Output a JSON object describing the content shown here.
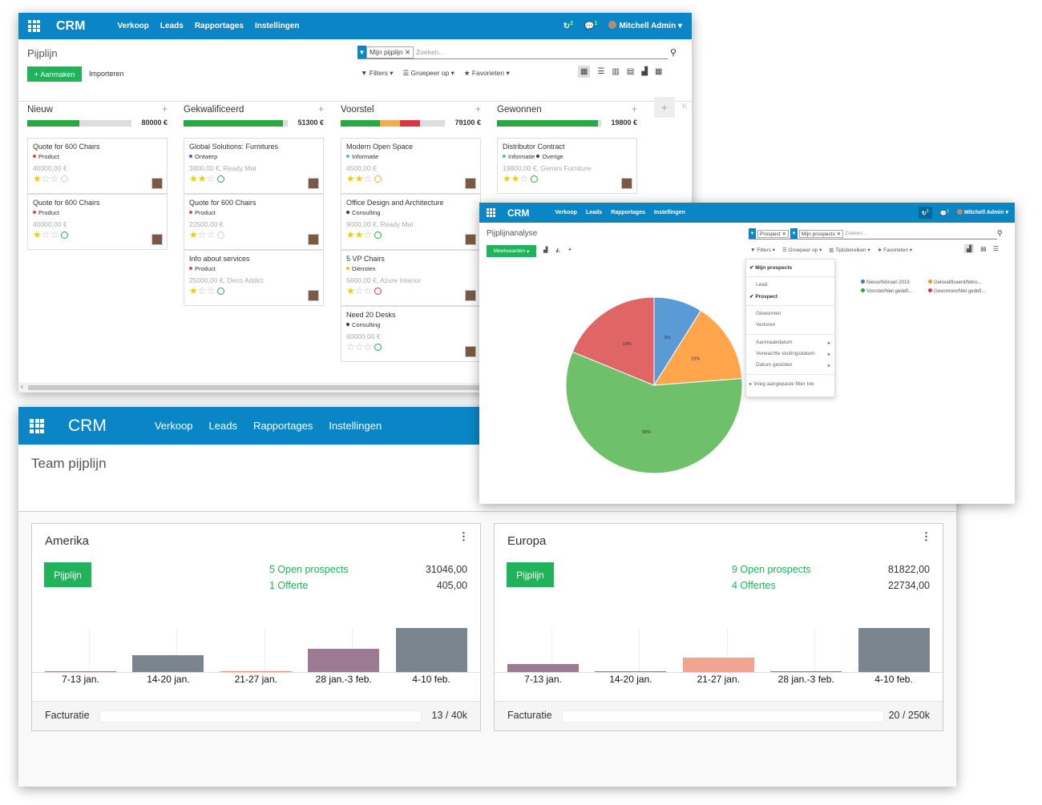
{
  "kanban": {
    "nav": {
      "brand": "CRM",
      "menu": [
        "Verkoop",
        "Leads",
        "Rapportages",
        "Instellingen"
      ],
      "badge1": "2",
      "badge2": "1",
      "user": "Mitchell Admin"
    },
    "breadcrumb": "Pijplijn",
    "facet": "Mijn pijplijn",
    "search_placeholder": "Zoeken...",
    "create_label": "Aanmaken",
    "import_label": "Importeren",
    "filters": "Filters",
    "groupby": "Groepeer op",
    "favorites": "Favorieten",
    "columns": [
      {
        "name": "Nieuw",
        "total": "80000",
        "pct": [
          {
            "c": "#28a745",
            "v": 0.5
          }
        ],
        "cards": [
          {
            "title": "Quote for 600 Chairs",
            "tags": [
              {
                "t": "Product",
                "c": "#e74c3c"
              }
            ],
            "amount": "40000,00 €",
            "stars": 1,
            "clock": "#ccc"
          },
          {
            "title": "Quote for 600 Chairs",
            "tags": [
              {
                "t": "Product",
                "c": "#e74c3c"
              }
            ],
            "amount": "40000,00 €",
            "stars": 1,
            "clock": "#28a745"
          }
        ]
      },
      {
        "name": "Gekwalificeerd",
        "total": "51300",
        "pct": [
          {
            "c": "#28a745",
            "v": 0.95
          }
        ],
        "cards": [
          {
            "title": "Global Solutions: Furnitures",
            "tags": [
              {
                "t": "Ontwerp",
                "c": "#8e44ad"
              }
            ],
            "amount": "3800,00 €, Ready Mat",
            "stars": 2,
            "clock": "#28a745"
          },
          {
            "title": "Quote for 600 Chairs",
            "tags": [
              {
                "t": "Product",
                "c": "#e74c3c"
              }
            ],
            "amount": "22500,00 €",
            "stars": 1,
            "clock": "#ccc"
          },
          {
            "title": "Info about services",
            "tags": [
              {
                "t": "Product",
                "c": "#e74c3c"
              }
            ],
            "amount": "25000,00 €, Deco Addict",
            "stars": 1,
            "clock": "#28a745"
          }
        ]
      },
      {
        "name": "Voorstel",
        "total": "79100",
        "pct": [
          {
            "c": "#28a745",
            "v": 0.38
          },
          {
            "c": "#f0ad4e",
            "v": 0.19
          },
          {
            "c": "#dc3545",
            "v": 0.19
          }
        ],
        "cards": [
          {
            "title": "Modern Open Space",
            "tags": [
              {
                "t": "Informatie",
                "c": "#5dade2"
              }
            ],
            "amount": "4500,00 €",
            "stars": 2,
            "clock": "#f0ad4e"
          },
          {
            "title": "Office Design and Architecture",
            "tags": [
              {
                "t": "Consulting",
                "c": "#2c3e50"
              }
            ],
            "amount": "9000,00 €, Ready Mat",
            "stars": 2,
            "clock": "#28a745"
          },
          {
            "title": "5 VP Chairs",
            "tags": [
              {
                "t": "Diensten",
                "c": "#f1c40f"
              }
            ],
            "amount": "5600,00 €, Azure Interior",
            "stars": 1,
            "clock": "#dc3545"
          },
          {
            "title": "Need 20 Desks",
            "tags": [
              {
                "t": "Consulting",
                "c": "#2c3e50"
              }
            ],
            "amount": "60000,00 €",
            "stars": 0,
            "clock": "#28a745"
          }
        ]
      },
      {
        "name": "Gewonnen",
        "total": "19800",
        "pct": [
          {
            "c": "#28a745",
            "v": 0.97
          }
        ],
        "cards": [
          {
            "title": "Distributor Contract",
            "tags": [
              {
                "t": "Informatie",
                "c": "#5dade2"
              },
              {
                "t": "Overige",
                "c": "#2c3e50"
              }
            ],
            "amount": "19800,00 €, Gemini Furniture",
            "stars": 2,
            "clock": "#28a745"
          }
        ]
      }
    ],
    "currency": "€",
    "add_col_letter": "K"
  },
  "team": {
    "nav": {
      "brand": "CRM",
      "menu": [
        "Verkoop",
        "Leads",
        "Rapportages",
        "Instellingen"
      ]
    },
    "title": "Team pijplijn",
    "teams": [
      {
        "name": "Amerika",
        "button": "Pijplijn",
        "stats": [
          {
            "label": "5 Open prospects",
            "value": "31046,00"
          },
          {
            "label": "1 Offerte",
            "value": "405,00"
          }
        ],
        "bars": [
          {
            "label": "7-13 jan.",
            "v": 0.02,
            "c": "#a37b93"
          },
          {
            "label": "14-20 jan.",
            "v": 0.38,
            "c": "#7a858f"
          },
          {
            "label": "21-27 jan.",
            "v": 0.02,
            "c": "#ee8b7e"
          },
          {
            "label": "28 jan.-3 feb.",
            "v": 0.52,
            "c": "#9c7a93"
          },
          {
            "label": "4-10 feb.",
            "v": 1,
            "c": "#7a858f"
          }
        ],
        "inv_label": "Facturatie",
        "inv_value": "13 / 40k"
      },
      {
        "name": "Europa",
        "button": "Pijplijn",
        "stats": [
          {
            "label": "9 Open prospects",
            "value": "81822,00"
          },
          {
            "label": "4 Offertes",
            "value": "22734,00"
          }
        ],
        "bars": [
          {
            "label": "7-13 jan.",
            "v": 0.19,
            "c": "#9c7a93"
          },
          {
            "label": "14-20 jan.",
            "v": 0.02,
            "c": "#7a858f"
          },
          {
            "label": "21-27 jan.",
            "v": 0.32,
            "c": "#f4a391"
          },
          {
            "label": "28 jan.-3 feb.",
            "v": 0.02,
            "c": "#7a858f"
          },
          {
            "label": "4-10 feb.",
            "v": 1,
            "c": "#7a858f"
          }
        ],
        "inv_label": "Facturatie",
        "inv_value": "20 / 250k"
      }
    ]
  },
  "analysis": {
    "nav": {
      "brand": "CRM",
      "menu": [
        "Verkoop",
        "Leads",
        "Rapportages",
        "Instellingen"
      ],
      "badge1": "2",
      "badge2": "1",
      "user": "Mitchell Admin"
    },
    "breadcrumb": "Pijplijnanalyse",
    "facets": [
      "Prospect",
      "Mijn prospects"
    ],
    "search_placeholder": "Zoeken...",
    "measures": "Meetwaarden",
    "filters": "Filters",
    "groupby": "Groepeer op",
    "timeranges": "Tijdsbereiken",
    "favorites": "Favorieten",
    "dropdown": [
      "Mijn prospects",
      "Lead",
      "Prospect",
      "Gewonnen",
      "Verloren",
      "Aanmaakdatum",
      "Verwachte sluitingsdatum",
      "Datum gesloten",
      "Voeg aangepaste filter toe"
    ],
    "legend": [
      {
        "t": "Nieuw/februari 2019",
        "c": "#2e7bd1"
      },
      {
        "t": "Gekwalificeerd/febru...",
        "c": "#f0932b"
      },
      {
        "t": "Voorstel/Niet gedefi...",
        "c": "#28a745"
      },
      {
        "t": "Gewonnen/Niet gedefi...",
        "c": "#dc3545"
      }
    ]
  },
  "chart_data": {
    "type": "pie",
    "categories": [
      "Nieuw/februari 2019",
      "Gekwalificeerd/febru...",
      "Voorstel/Niet gedefi...",
      "Gewonnen/Niet gedefi..."
    ],
    "values": [
      9,
      15,
      58,
      19
    ],
    "labels": [
      "9%",
      "15%",
      "58%",
      "19%"
    ],
    "colors": [
      "#5b9bd5",
      "#ffa64d",
      "#6ec06a",
      "#e06666"
    ]
  }
}
